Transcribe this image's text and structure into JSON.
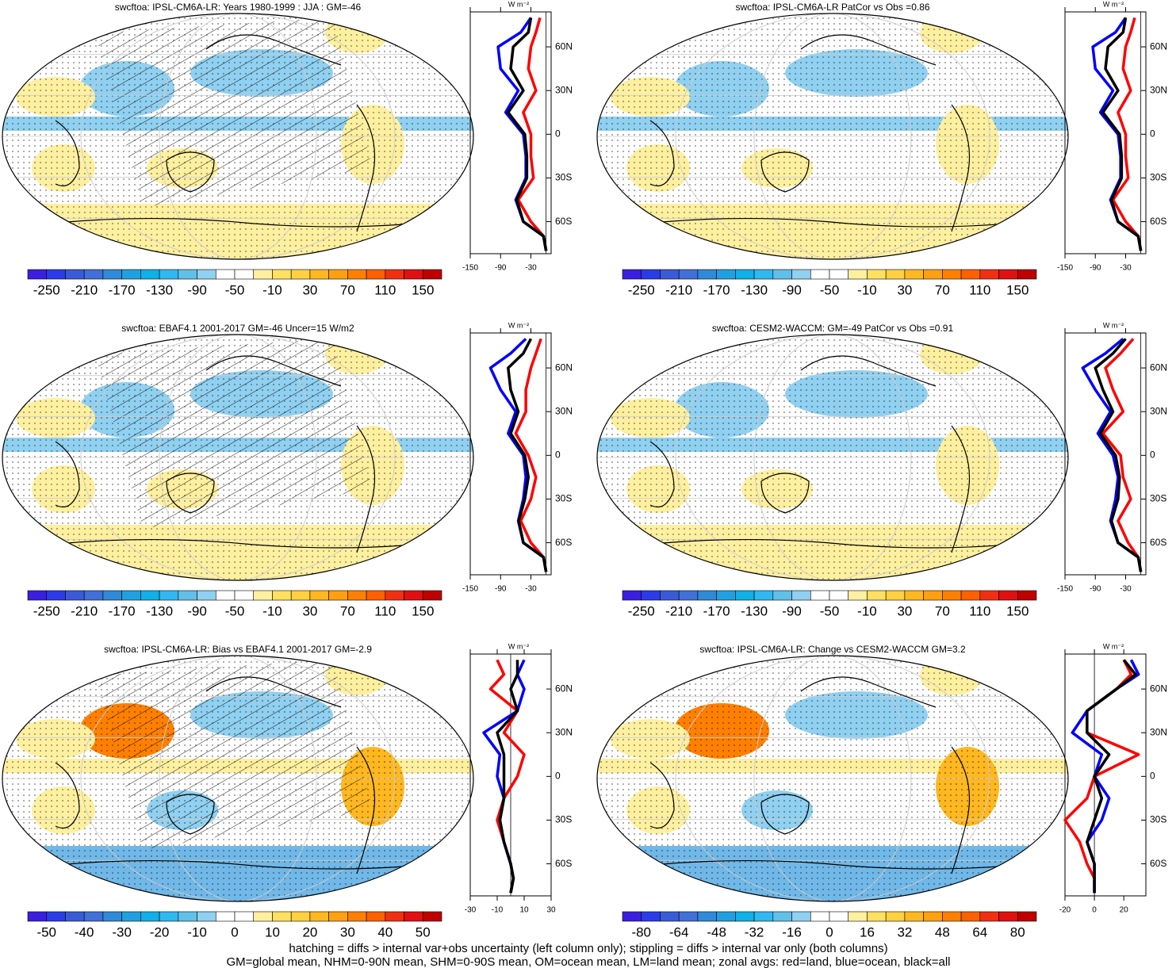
{
  "chart_data": [
    {
      "type": "map",
      "title": "swcftoa: IPSL-CM6A-LR: Years 1980-1999 : JJA : GM=-46",
      "colorbar": {
        "labels": [
          -250,
          -210,
          -170,
          -130,
          -90,
          -50,
          -10,
          30,
          70,
          110,
          150
        ]
      },
      "zonal": {
        "type": "line",
        "unit": "W m⁻²",
        "xlim": [
          -150,
          10
        ],
        "xticks": [
          -150,
          -90,
          -30
        ],
        "ylim": [
          -82,
          84
        ],
        "yticks": [
          {
            "value": -60,
            "label": "60S"
          },
          {
            "value": -30,
            "label": "30S"
          },
          {
            "value": 0,
            "label": "0"
          },
          {
            "value": 30,
            "label": "30N"
          },
          {
            "value": 60,
            "label": "60N"
          }
        ],
        "lat": [
          -80,
          -70,
          -60,
          -45,
          -30,
          -15,
          0,
          15,
          30,
          45,
          60,
          70,
          80
        ],
        "series": [
          {
            "name": "land",
            "color": "#ff0000",
            "values": [
              0,
              -5,
              -30,
              -55,
              -25,
              -30,
              -30,
              -45,
              -20,
              -35,
              -30,
              -20,
              -12
            ]
          },
          {
            "name": "ocean",
            "color": "#0000ff",
            "values": [
              0,
              -5,
              -45,
              -60,
              -40,
              -40,
              -45,
              -80,
              -55,
              -90,
              -95,
              -50,
              -30
            ]
          },
          {
            "name": "all",
            "color": "#000000",
            "values": [
              0,
              -5,
              -45,
              -58,
              -38,
              -38,
              -42,
              -75,
              -45,
              -70,
              -65,
              -35,
              -30
            ]
          }
        ]
      }
    },
    {
      "type": "map",
      "title": "swcftoa: IPSL-CM6A-LR PatCor vs Obs =0.86",
      "colorbar": {
        "labels": [
          -250,
          -210,
          -170,
          -130,
          -90,
          -50,
          -10,
          30,
          70,
          110,
          150
        ]
      },
      "zonal": {
        "type": "line",
        "unit": "W m⁻²",
        "xlim": [
          -150,
          10
        ],
        "xticks": [
          -150,
          -90,
          -30
        ],
        "ylim": [
          -82,
          84
        ],
        "yticks": [
          {
            "value": -60,
            "label": "60S"
          },
          {
            "value": -30,
            "label": "30S"
          },
          {
            "value": 0,
            "label": "0"
          },
          {
            "value": 30,
            "label": "30N"
          },
          {
            "value": 60,
            "label": "60N"
          }
        ],
        "lat": [
          -80,
          -70,
          -60,
          -45,
          -30,
          -15,
          0,
          15,
          30,
          45,
          60,
          70,
          80
        ],
        "series": [
          {
            "name": "land",
            "color": "#ff0000",
            "values": [
              0,
              -5,
              -30,
              -55,
              -25,
              -30,
              -30,
              -45,
              -20,
              -35,
              -30,
              -20,
              -12
            ]
          },
          {
            "name": "ocean",
            "color": "#0000ff",
            "values": [
              0,
              -5,
              -45,
              -60,
              -40,
              -40,
              -45,
              -80,
              -55,
              -90,
              -95,
              -50,
              -30
            ]
          },
          {
            "name": "all",
            "color": "#000000",
            "values": [
              0,
              -5,
              -45,
              -58,
              -38,
              -38,
              -42,
              -75,
              -45,
              -70,
              -65,
              -35,
              -30
            ]
          }
        ]
      }
    },
    {
      "type": "map",
      "title": "swcftoa: EBAF4.1 2001-2017 GM=-46 Uncer=15 W/m2",
      "colorbar": {
        "labels": [
          -250,
          -210,
          -170,
          -130,
          -90,
          -50,
          -10,
          30,
          70,
          110,
          150
        ]
      },
      "zonal": {
        "type": "line",
        "unit": "W m⁻²",
        "xlim": [
          -150,
          10
        ],
        "xticks": [
          -150,
          -90,
          -30
        ],
        "ylim": [
          -82,
          84
        ],
        "yticks": [
          {
            "value": -60,
            "label": "60S"
          },
          {
            "value": -30,
            "label": "30S"
          },
          {
            "value": 0,
            "label": "0"
          },
          {
            "value": 30,
            "label": "30N"
          },
          {
            "value": 60,
            "label": "60N"
          }
        ],
        "lat": [
          -80,
          -70,
          -60,
          -45,
          -30,
          -15,
          0,
          15,
          30,
          45,
          60,
          70,
          80
        ],
        "series": [
          {
            "name": "land",
            "color": "#ff0000",
            "values": [
              0,
              -5,
              -30,
              -50,
              -30,
              -20,
              -35,
              -60,
              -40,
              -40,
              -30,
              -20,
              -10
            ]
          },
          {
            "name": "ocean",
            "color": "#0000ff",
            "values": [
              0,
              -5,
              -45,
              -55,
              -45,
              -40,
              -45,
              -75,
              -60,
              -90,
              -110,
              -70,
              -40
            ]
          },
          {
            "name": "all",
            "color": "#000000",
            "values": [
              0,
              -5,
              -45,
              -54,
              -42,
              -35,
              -42,
              -70,
              -55,
              -70,
              -75,
              -45,
              -30
            ]
          }
        ]
      }
    },
    {
      "type": "map",
      "title": "swcftoa: CESM2-WACCM: GM=-49 PatCor vs Obs =0.91",
      "colorbar": {
        "labels": [
          -250,
          -210,
          -170,
          -130,
          -90,
          -50,
          -10,
          30,
          70,
          110,
          150
        ]
      },
      "zonal": {
        "type": "line",
        "unit": "W m⁻²",
        "xlim": [
          -150,
          10
        ],
        "xticks": [
          -150,
          -90,
          -30
        ],
        "ylim": [
          -82,
          84
        ],
        "yticks": [
          {
            "value": -60,
            "label": "60S"
          },
          {
            "value": -30,
            "label": "30S"
          },
          {
            "value": 0,
            "label": "0"
          },
          {
            "value": 30,
            "label": "30N"
          },
          {
            "value": 60,
            "label": "60N"
          }
        ],
        "lat": [
          -80,
          -70,
          -60,
          -45,
          -30,
          -15,
          0,
          15,
          30,
          45,
          60,
          70,
          80
        ],
        "series": [
          {
            "name": "land",
            "color": "#ff0000",
            "values": [
              0,
              -5,
              -25,
              -45,
              -20,
              -35,
              -40,
              -75,
              -35,
              -55,
              -70,
              -40,
              -15
            ]
          },
          {
            "name": "ocean",
            "color": "#0000ff",
            "values": [
              0,
              -5,
              -45,
              -60,
              -50,
              -45,
              -55,
              -85,
              -60,
              -90,
              -115,
              -70,
              -35
            ]
          },
          {
            "name": "all",
            "color": "#000000",
            "values": [
              0,
              -5,
              -45,
              -58,
              -45,
              -42,
              -50,
              -80,
              -55,
              -75,
              -90,
              -55,
              -30
            ]
          }
        ]
      }
    },
    {
      "type": "map",
      "title": "swcftoa: IPSL-CM6A-LR: Bias vs EBAF4.1 2001-2017 GM=-2.9",
      "colorbar": {
        "labels": [
          -50,
          -40,
          -30,
          -20,
          -10,
          0,
          10,
          20,
          30,
          40,
          50
        ]
      },
      "zonal": {
        "type": "line",
        "unit": "W m⁻²",
        "xlim": [
          -30,
          30
        ],
        "xticks": [
          -30,
          -10,
          10,
          30
        ],
        "ylim": [
          -82,
          84
        ],
        "yticks": [
          {
            "value": -60,
            "label": "60S"
          },
          {
            "value": -30,
            "label": "30S"
          },
          {
            "value": 0,
            "label": "0"
          },
          {
            "value": 30,
            "label": "30N"
          },
          {
            "value": 60,
            "label": "60N"
          }
        ],
        "lat": [
          -80,
          -70,
          -60,
          -45,
          -30,
          -15,
          0,
          15,
          30,
          45,
          60,
          70,
          80
        ],
        "series": [
          {
            "name": "land",
            "color": "#ff0000",
            "values": [
              0,
              2,
              0,
              -5,
              -10,
              -5,
              5,
              10,
              -5,
              5,
              -15,
              -5,
              -10
            ]
          },
          {
            "name": "ocean",
            "color": "#0000ff",
            "values": [
              0,
              2,
              0,
              -5,
              -8,
              -5,
              -10,
              -8,
              -20,
              5,
              10,
              5,
              10
            ]
          },
          {
            "name": "all",
            "color": "#000000",
            "values": [
              0,
              2,
              0,
              -5,
              -8,
              -5,
              -5,
              -5,
              -10,
              5,
              0,
              5,
              5
            ]
          }
        ]
      }
    },
    {
      "type": "map",
      "title": "swcftoa: IPSL-CM6A-LR: Change vs CESM2-WACCM GM=3.2",
      "colorbar": {
        "labels": [
          -80,
          -64,
          -48,
          -32,
          -16,
          0,
          16,
          32,
          48,
          64,
          80
        ]
      },
      "zonal": {
        "type": "line",
        "unit": "W m⁻²",
        "xlim": [
          -20,
          35
        ],
        "xticks": [
          -20,
          0,
          20
        ],
        "ylim": [
          -82,
          84
        ],
        "yticks": [
          {
            "value": -60,
            "label": "60S"
          },
          {
            "value": -30,
            "label": "30S"
          },
          {
            "value": 0,
            "label": "0"
          },
          {
            "value": 30,
            "label": "30N"
          },
          {
            "value": 60,
            "label": "60N"
          }
        ],
        "lat": [
          -80,
          -70,
          -60,
          -45,
          -30,
          -15,
          0,
          15,
          30,
          45,
          60,
          70,
          80
        ],
        "series": [
          {
            "name": "land",
            "color": "#ff0000",
            "values": [
              0,
              0,
              -5,
              -10,
              -20,
              -5,
              0,
              30,
              -5,
              -5,
              15,
              25,
              20
            ]
          },
          {
            "name": "ocean",
            "color": "#0000ff",
            "values": [
              0,
              0,
              0,
              -5,
              5,
              10,
              0,
              5,
              -15,
              -5,
              15,
              30,
              25
            ]
          },
          {
            "name": "all",
            "color": "#000000",
            "values": [
              0,
              0,
              0,
              -5,
              0,
              5,
              0,
              10,
              -5,
              -5,
              15,
              28,
              20
            ]
          }
        ]
      }
    }
  ],
  "footer": [
    "hatching = diffs > internal var+obs uncertainty (left column only); stippling = diffs > internal var only (both columns)",
    "GM=global mean, NHM=0-90N mean, SHM=0-90S mean, OM=ocean mean, LM=land mean; zonal avgs: red=land, blue=ocean, black=all"
  ]
}
